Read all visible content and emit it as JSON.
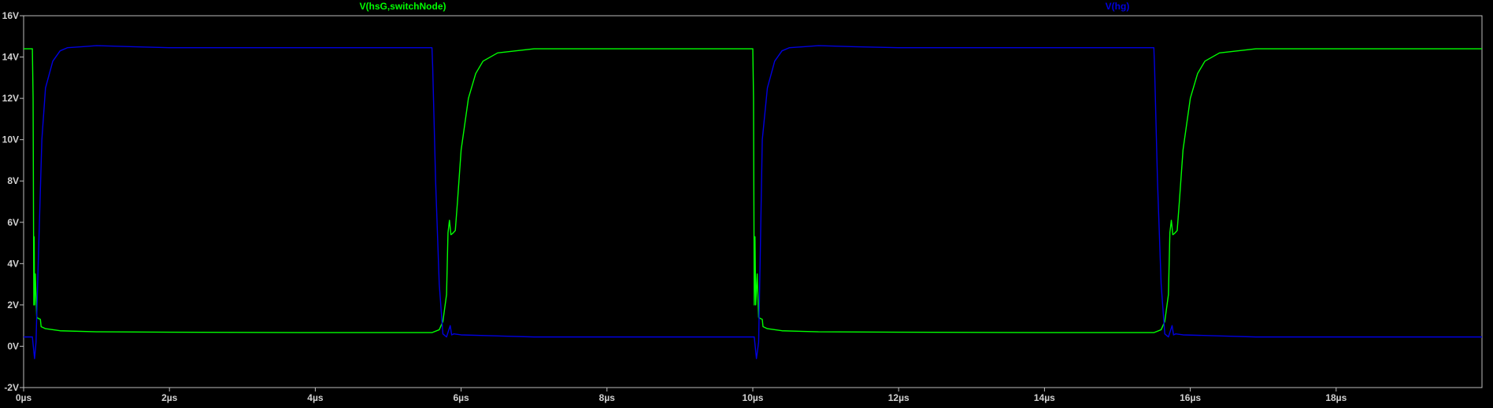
{
  "chart_data": {
    "type": "line",
    "x_unit": "µs",
    "y_unit": "V",
    "xlim": [
      0,
      20
    ],
    "ylim": [
      -2,
      16
    ],
    "x_ticks": [
      0,
      2,
      4,
      6,
      8,
      10,
      12,
      14,
      16,
      18
    ],
    "y_ticks": [
      -2,
      0,
      2,
      4,
      6,
      8,
      10,
      12,
      14,
      16
    ],
    "x_tick_labels": [
      "0µs",
      "2µs",
      "4µs",
      "6µs",
      "8µs",
      "10µs",
      "12µs",
      "14µs",
      "16µs",
      "18µs"
    ],
    "y_tick_labels": [
      "-2V",
      "0V",
      "2V",
      "4V",
      "6V",
      "8V",
      "10V",
      "12V",
      "14V",
      "16V"
    ],
    "grid": false,
    "series": [
      {
        "name": "V(hsG,switchNode)",
        "color": "#00ff00",
        "x": [
          0,
          0.12,
          0.13,
          0.14,
          0.145,
          0.15,
          0.16,
          0.18,
          0.2,
          0.23,
          0.24,
          0.3,
          0.5,
          1.0,
          2.0,
          4.0,
          5.6,
          5.7,
          5.75,
          5.8,
          5.82,
          5.84,
          5.86,
          5.88,
          5.92,
          5.95,
          6.0,
          6.1,
          6.2,
          6.3,
          6.5,
          7.0,
          8.0,
          10.0,
          10.01,
          10.02,
          10.03,
          10.04,
          10.06,
          10.08,
          10.1,
          10.13,
          10.14,
          10.2,
          10.4,
          10.9,
          12.0,
          14.0,
          15.5,
          15.6,
          15.65,
          15.7,
          15.72,
          15.74,
          15.76,
          15.78,
          15.82,
          15.85,
          15.9,
          16.0,
          16.1,
          16.2,
          16.4,
          16.9,
          18.0,
          20.0
        ],
        "y": [
          14.4,
          14.4,
          12.0,
          2.0,
          5.3,
          2.0,
          3.5,
          1.4,
          1.35,
          1.3,
          0.95,
          0.85,
          0.75,
          0.7,
          0.68,
          0.66,
          0.66,
          0.8,
          1.2,
          2.5,
          5.5,
          6.1,
          5.4,
          5.45,
          5.6,
          7.0,
          9.5,
          12.0,
          13.2,
          13.8,
          14.2,
          14.4,
          14.4,
          14.4,
          12.0,
          2.0,
          5.3,
          2.0,
          3.5,
          1.4,
          1.35,
          1.3,
          0.95,
          0.85,
          0.75,
          0.7,
          0.68,
          0.66,
          0.66,
          0.8,
          1.2,
          2.5,
          5.5,
          6.1,
          5.4,
          5.45,
          5.6,
          7.0,
          9.5,
          12.0,
          13.2,
          13.8,
          14.2,
          14.4,
          14.4,
          14.4
        ]
      },
      {
        "name": "V(hg)",
        "color": "#0000e0",
        "x": [
          0,
          0.12,
          0.15,
          0.17,
          0.2,
          0.25,
          0.3,
          0.4,
          0.5,
          0.6,
          0.8,
          1.0,
          1.5,
          2.0,
          4.0,
          5.6,
          5.61,
          5.65,
          5.7,
          5.75,
          5.8,
          5.85,
          5.87,
          5.9,
          6.0,
          6.5,
          7.0,
          8.0,
          10.0,
          10.02,
          10.05,
          10.08,
          10.1,
          10.13,
          10.2,
          10.3,
          10.4,
          10.5,
          10.7,
          10.9,
          11.4,
          12.0,
          14.0,
          15.5,
          15.51,
          15.55,
          15.6,
          15.65,
          15.7,
          15.75,
          15.77,
          15.8,
          15.9,
          16.4,
          16.9,
          18.0,
          20.0
        ],
        "y": [
          0.45,
          0.45,
          -0.6,
          0.2,
          4.0,
          10.0,
          12.5,
          13.8,
          14.3,
          14.45,
          14.5,
          14.55,
          14.5,
          14.45,
          14.45,
          14.45,
          13.5,
          8.0,
          3.0,
          0.6,
          0.45,
          1.0,
          0.55,
          0.6,
          0.55,
          0.5,
          0.45,
          0.45,
          0.45,
          0.45,
          -0.6,
          0.2,
          4.0,
          10.0,
          12.5,
          13.8,
          14.3,
          14.45,
          14.5,
          14.55,
          14.5,
          14.45,
          14.45,
          14.45,
          13.5,
          8.0,
          3.0,
          0.6,
          0.45,
          1.0,
          0.55,
          0.6,
          0.55,
          0.5,
          0.45,
          0.45,
          0.45
        ]
      }
    ]
  }
}
